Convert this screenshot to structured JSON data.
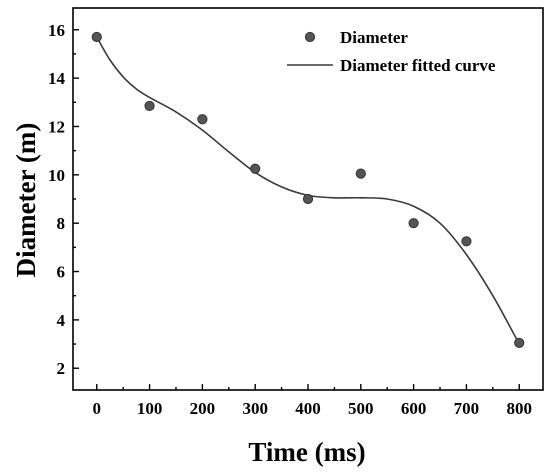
{
  "chart_data": {
    "type": "scatter",
    "title": "",
    "xlabel": "Time (ms)",
    "ylabel": "Diameter (m)",
    "xlim": [
      -45,
      845
    ],
    "ylim": [
      1.1,
      16.9
    ],
    "grid": false,
    "legend_position": "top-right",
    "x_ticks": [
      0,
      100,
      200,
      300,
      400,
      500,
      600,
      700,
      800
    ],
    "y_ticks": [
      2,
      4,
      6,
      8,
      10,
      12,
      14,
      16
    ],
    "series": [
      {
        "name": "Diameter",
        "kind": "scatter",
        "color": "#555555",
        "x": [
          0,
          100,
          200,
          300,
          400,
          500,
          600,
          700,
          800
        ],
        "y": [
          15.7,
          12.85,
          12.3,
          10.25,
          9.0,
          10.05,
          8.0,
          7.25,
          3.05
        ]
      },
      {
        "name": "Diameter fitted curve",
        "kind": "line",
        "color": "#3a3a3a",
        "x": [
          0,
          25,
          50,
          75,
          100,
          150,
          200,
          250,
          300,
          350,
          400,
          450,
          500,
          550,
          600,
          650,
          700,
          750,
          800
        ],
        "y": [
          15.7,
          14.75,
          14.05,
          13.55,
          13.2,
          12.6,
          11.85,
          10.95,
          10.1,
          9.5,
          9.15,
          9.05,
          9.05,
          9.0,
          8.7,
          8.0,
          6.7,
          5.0,
          3.0
        ]
      }
    ]
  }
}
